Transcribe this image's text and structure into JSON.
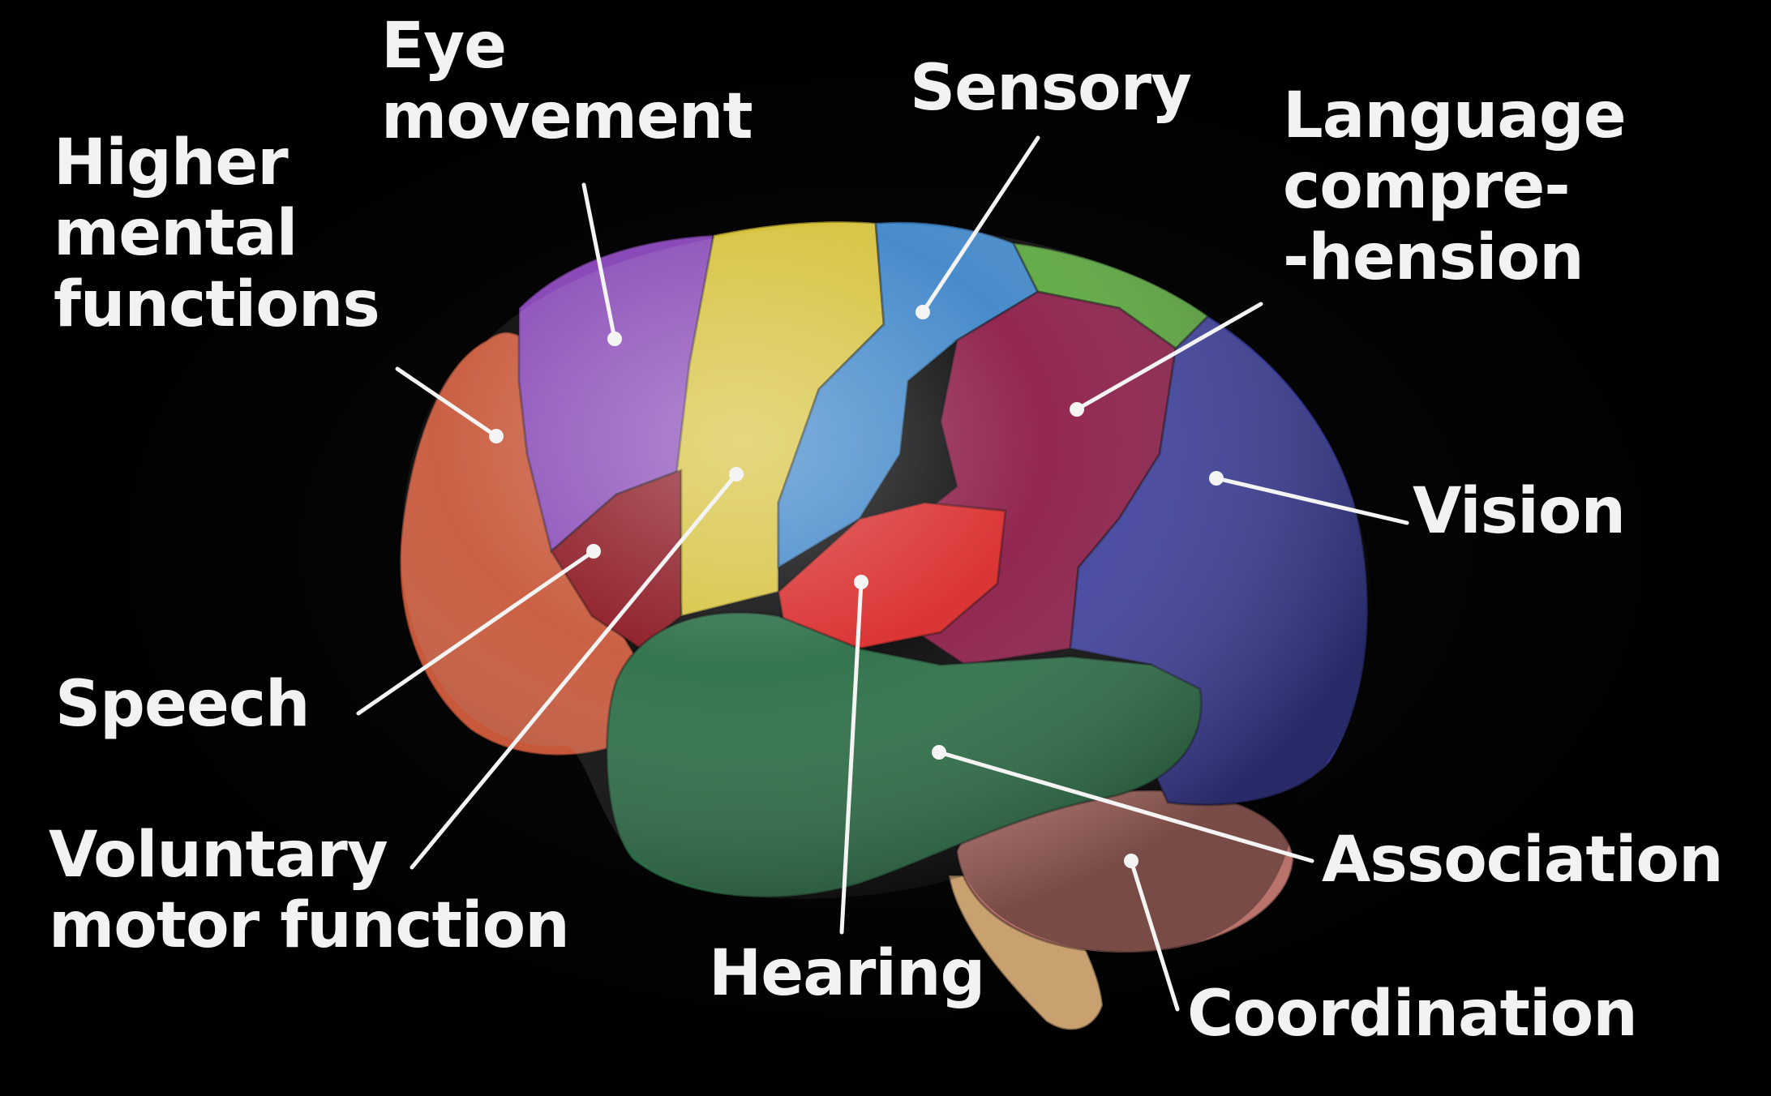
{
  "labels": {
    "higher_mental": "Higher\nmental\nfunctions",
    "eye_movement": "Eye\nmovement",
    "sensory": "Sensory",
    "language": "Language\ncompre-\n-hension",
    "vision": "Vision",
    "speech": "Speech",
    "voluntary_motor": "Voluntary\nmotor function",
    "hearing": "Hearing",
    "association": "Association",
    "coordination": "Coordination"
  },
  "colors": {
    "background": "#000000",
    "higher_mental": "#c8583a",
    "eye_movement": "#8a4bb8",
    "voluntary_motor": "#d7c23e",
    "sensory": "#3f86c9",
    "sensory_green": "#5aa83c",
    "language": "#8c1c48",
    "vision": "#3d3f9e",
    "speech": "#8a1520",
    "hearing": "#d92a2a",
    "association": "#2a6e45",
    "coordination": "#b9736c",
    "brainstem": "#c9a070",
    "label_text": "#f2f2f2",
    "leader_line": "#f4f4f4"
  }
}
